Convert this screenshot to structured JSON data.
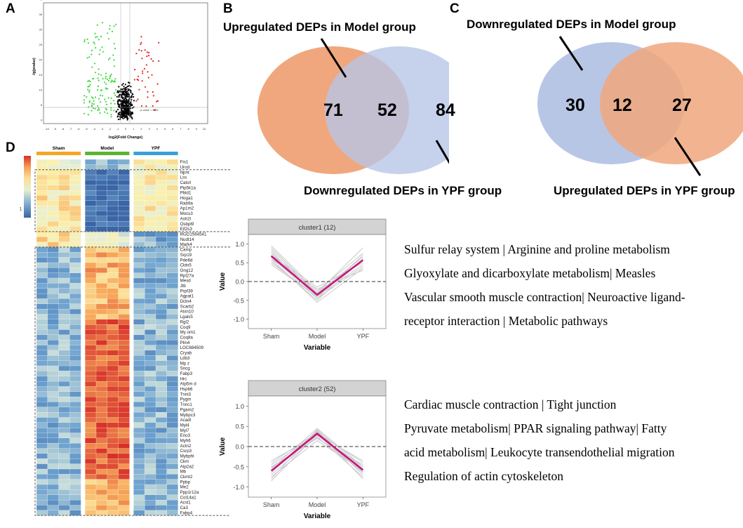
{
  "panels": {
    "a": "A",
    "b": "B",
    "c": "C",
    "d": "D"
  },
  "volcano": {
    "xlabel": "log2(Fold Change)",
    "ylabel": "-lg(pvalue)",
    "threshold_label": "p-value = 0.05",
    "x_ticks": [
      "-10",
      "-9",
      "-8",
      "-7",
      "-6",
      "-5",
      "-4",
      "-3",
      "-2",
      "-1",
      "0",
      "1",
      "2",
      "3",
      "4",
      "5",
      "6",
      "7",
      "8",
      "9",
      "10"
    ],
    "y_ticks": [
      "40",
      "35",
      "30",
      "25",
      "20",
      "15",
      "10",
      "5",
      "0"
    ],
    "colors": {
      "up": "#e2231a",
      "down": "#3bd93b",
      "ns": "#000000"
    }
  },
  "venn_b": {
    "title_top": "Upregulated DEPs in Model group",
    "title_bottom": "Downregulated DEPs in YPF group",
    "left_only": "71",
    "overlap": "52",
    "right_only": "84",
    "colors": {
      "left": "#f0a77d",
      "right": "#b8c6e6"
    }
  },
  "venn_c": {
    "title_top": "Downregulated DEPs in Model group",
    "title_bottom": "Upregulated DEPs in YPF group",
    "left_only": "30",
    "overlap": "12",
    "right_only": "27",
    "colors": {
      "left": "#b8c6e6",
      "right": "#f0a77d"
    }
  },
  "heatmap": {
    "groups": [
      "Sham",
      "Model",
      "YPF"
    ],
    "group_colors": [
      "#f5a623",
      "#5cb531",
      "#3aa0d8"
    ],
    "legend_ticks": [
      "2",
      "1",
      "0",
      "−1"
    ],
    "legend_values": [
      2,
      1,
      0,
      -1
    ],
    "genes": [
      "Fis1",
      "Urod",
      "Npnt",
      "Lss",
      "Calcrl",
      "Pip5k1a",
      "Pbld1",
      "Hoga1",
      "Rab9a",
      "Ap1m2",
      "Mocs3",
      "Ash2l",
      "Osbpl9",
      "Eif2s3",
      "RGD1564541",
      "Nudt14",
      "Mark4",
      "Camp",
      "Srp19",
      "Pde6d",
      "Cldn5",
      "Gng12",
      "Rpl27a",
      "Mesd",
      "Jtb",
      "Prpf39",
      "Agpat1",
      "Dctn4",
      "Scarb2",
      "Atxn10",
      "Lgals5",
      "Rgl2",
      "Coq9",
      "My om1",
      "Coq8a",
      "Plin4",
      "LOC684509",
      "Cryab",
      "Ldb3",
      "Mp z",
      "Sncg",
      "Fabp3",
      "Hrc",
      "Atp5m d",
      "Hspb6",
      "Tnni3",
      "Pygm",
      "Tnnc1",
      "Pgam2",
      "Mybpc3",
      "Acadl",
      "Myl4",
      "Myl7",
      "Eno3",
      "Myh6",
      "Actn2",
      "Csrp3",
      "Mybphl",
      "Ckm",
      "Atp2a2",
      "Mb",
      "Ckmt2",
      "Ppbp",
      "Me2",
      "Ppp1r12a",
      "Col14a1",
      "Acsl1",
      "Ca3",
      "Fabp4"
    ]
  },
  "chart_data": [
    {
      "type": "line",
      "title": "cluster1 (12)",
      "xlabel": "Variable",
      "ylabel": "Value",
      "categories": [
        "Sham",
        "Model",
        "YPF"
      ],
      "y_ticks": [
        "1.0",
        "0.5",
        "0.0",
        "-0.5",
        "-1.0"
      ],
      "ylim": [
        -1.25,
        1.25
      ],
      "reference_line": 0.0,
      "series": [
        {
          "name": "centroid",
          "values": [
            0.68,
            -0.35,
            0.57
          ]
        }
      ],
      "background_series": [
        [
          0.95,
          -0.25,
          0.75
        ],
        [
          0.8,
          -0.45,
          0.7
        ],
        [
          0.6,
          -0.2,
          0.3
        ],
        [
          0.5,
          -0.4,
          0.45
        ],
        [
          0.75,
          -0.3,
          0.9
        ],
        [
          0.55,
          -0.5,
          0.6
        ],
        [
          0.85,
          -0.35,
          0.55
        ],
        [
          0.7,
          -0.15,
          0.5
        ],
        [
          0.65,
          -0.45,
          0.4
        ],
        [
          0.9,
          -0.3,
          0.65
        ],
        [
          0.45,
          -0.4,
          0.7
        ],
        [
          0.6,
          -0.55,
          0.35
        ]
      ]
    },
    {
      "type": "line",
      "title": "cluster2 (52)",
      "xlabel": "Variable",
      "ylabel": "Value",
      "categories": [
        "Sham",
        "Model",
        "YPF"
      ],
      "y_ticks": [
        "1.0",
        "0.5",
        "0.0",
        "-0.5",
        "-1.0"
      ],
      "ylim": [
        -1.25,
        1.25
      ],
      "reference_line": 0.0,
      "series": [
        {
          "name": "centroid",
          "values": [
            -0.6,
            0.32,
            -0.58
          ]
        }
      ],
      "background_series": [
        [
          -0.4,
          0.35,
          -0.4
        ],
        [
          -0.7,
          0.25,
          -0.75
        ],
        [
          -0.55,
          0.45,
          -0.5
        ],
        [
          -0.85,
          0.3,
          -0.65
        ],
        [
          -0.5,
          0.2,
          -0.45
        ],
        [
          -0.65,
          0.4,
          -0.7
        ],
        [
          -0.45,
          0.3,
          -0.35
        ],
        [
          -0.75,
          0.15,
          -0.6
        ],
        [
          -0.6,
          0.38,
          -0.8
        ],
        [
          -0.35,
          0.28,
          -0.5
        ],
        [
          -0.8,
          0.42,
          -0.55
        ],
        [
          -0.52,
          0.22,
          -0.62
        ]
      ]
    }
  ],
  "pathways_1": [
    "Sulfur relay system | Arginine and proline metabolism",
    "Glyoxylate and dicarboxylate metabolism| Measles",
    "Vascular smooth muscle contraction|  Neuroactive ligand-",
    "receptor interaction | Metabolic pathways"
  ],
  "pathways_2": [
    "Cardiac muscle contraction | Tight junction",
    "Pyruvate metabolism|  PPAR  signaling  pathway|  Fatty",
    "acid metabolism| Leukocyte transendothelial migration",
    "Regulation of actin cytoskeleton"
  ],
  "line_colors": {
    "centroid": "#c8167e",
    "background": "#c9c9c9",
    "strip": "#d3d3d3"
  }
}
